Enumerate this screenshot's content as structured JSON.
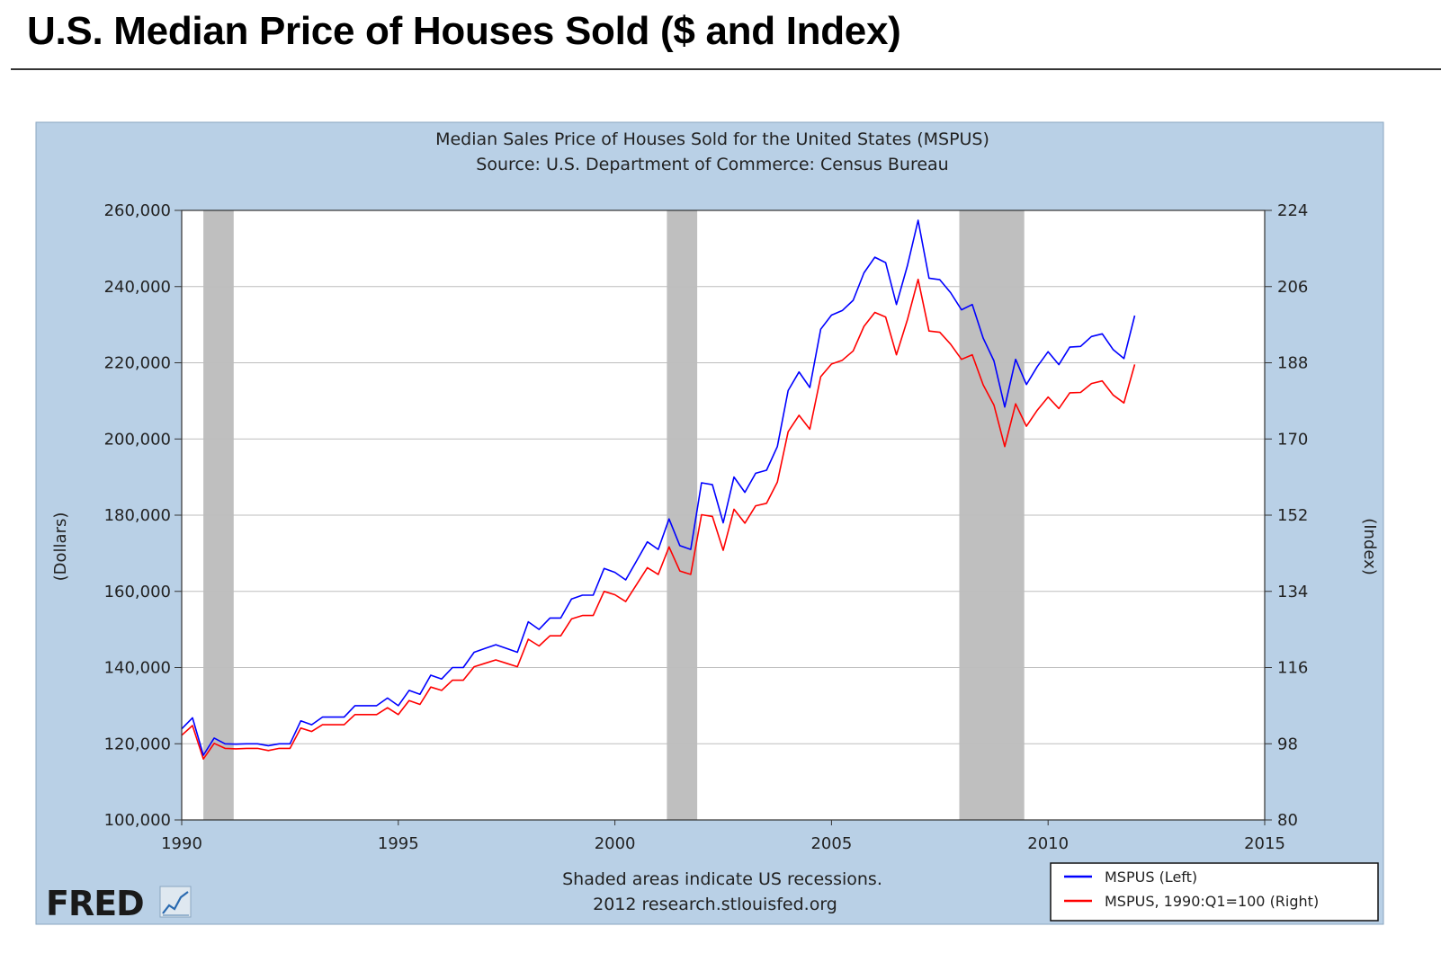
{
  "page": {
    "title": "U.S. Median Price of Houses Sold ($ and Index)"
  },
  "chart_data": {
    "type": "line",
    "title": "Median Sales Price of Houses Sold for the United States (MSPUS)",
    "subtitle": "Source: U.S. Department of Commerce: Census Bureau",
    "ylabel_left": "(Dollars)",
    "ylabel_right": "(Index)",
    "xlim": [
      1990,
      2015
    ],
    "ylim_left": [
      100000,
      260000
    ],
    "ylim_right": [
      80,
      224
    ],
    "x_ticks": [
      1990,
      1995,
      2000,
      2005,
      2010,
      2015
    ],
    "x_tick_labels": [
      "1990",
      "1995",
      "2000",
      "2005",
      "2010",
      "2015"
    ],
    "y_left_ticks": [
      100000,
      120000,
      140000,
      160000,
      180000,
      200000,
      220000,
      240000,
      260000
    ],
    "y_left_tick_labels": [
      "100,000",
      "120,000",
      "140,000",
      "160,000",
      "180,000",
      "200,000",
      "220,000",
      "240,000",
      "260,000"
    ],
    "y_right_ticks": [
      80,
      98,
      116,
      134,
      152,
      170,
      188,
      206,
      224
    ],
    "y_right_tick_labels": [
      "80",
      "98",
      "116",
      "134",
      "152",
      "170",
      "188",
      "206",
      "224"
    ],
    "grid": true,
    "legend_position": "bottom-right",
    "recessions": [
      {
        "start": 1990.5,
        "end": 1991.2
      },
      {
        "start": 2001.2,
        "end": 2001.9
      },
      {
        "start": 2007.95,
        "end": 2009.45
      }
    ],
    "footnote": "Shaded areas indicate US recessions.",
    "footnote2": "2012 research.stlouisfed.org",
    "logo_text": "FRED",
    "series": [
      {
        "name": "MSPUS (Left)",
        "axis": "left",
        "color": "#0000ff",
        "x": [
          1990.0,
          1990.25,
          1990.5,
          1990.75,
          1991.0,
          1991.25,
          1991.5,
          1991.75,
          1992.0,
          1992.25,
          1992.5,
          1992.75,
          1993.0,
          1993.25,
          1993.5,
          1993.75,
          1994.0,
          1994.25,
          1994.5,
          1994.75,
          1995.0,
          1995.25,
          1995.5,
          1995.75,
          1996.0,
          1996.25,
          1996.5,
          1996.75,
          1997.0,
          1997.25,
          1997.5,
          1997.75,
          1998.0,
          1998.25,
          1998.5,
          1998.75,
          1999.0,
          1999.25,
          1999.5,
          1999.75,
          2000.0,
          2000.25,
          2000.5,
          2000.75,
          2001.0,
          2001.25,
          2001.5,
          2001.75,
          2002.0,
          2002.25,
          2002.5,
          2002.75,
          2003.0,
          2003.25,
          2003.5,
          2003.75,
          2004.0,
          2004.25,
          2004.5,
          2004.75,
          2005.0,
          2005.25,
          2005.5,
          2005.75,
          2006.0,
          2006.25,
          2006.5,
          2006.75,
          2007.0,
          2007.25,
          2007.5,
          2007.75,
          2008.0,
          2008.25,
          2008.5,
          2008.75,
          2009.0,
          2009.25,
          2009.5,
          2009.75,
          2010.0,
          2010.25,
          2010.5,
          2010.75,
          2011.0,
          2011.25,
          2011.5,
          2011.75,
          2012.0
        ],
        "values": [
          123900,
          126800,
          117000,
          121500,
          120000,
          119900,
          120000,
          120000,
          119500,
          120000,
          120000,
          126000,
          125000,
          127000,
          127000,
          127000,
          130000,
          130000,
          130000,
          132000,
          130000,
          134000,
          133000,
          138000,
          137000,
          140000,
          140000,
          144000,
          145000,
          146000,
          145000,
          144000,
          152000,
          150000,
          153000,
          153000,
          158000,
          159000,
          159000,
          166000,
          165000,
          163000,
          168000,
          173000,
          171000,
          179000,
          172000,
          171000,
          188500,
          188000,
          178000,
          190000,
          186000,
          191000,
          191800,
          198000,
          212700,
          217600,
          213500,
          228800,
          232500,
          233700,
          236400,
          243600,
          247700,
          246300,
          235300,
          245400,
          257400,
          242200,
          241800,
          238400,
          233900,
          235300,
          226500,
          220500,
          208400,
          220900,
          214300,
          219000,
          222900,
          219500,
          224100,
          224300,
          226900,
          227600,
          223500,
          221100,
          232400
        ]
      },
      {
        "name": "MSPUS, 1990:Q1=100 (Right)",
        "axis": "right",
        "color": "#ff0000",
        "x": [
          1990.0,
          1990.25,
          1990.5,
          1990.75,
          1991.0,
          1991.25,
          1991.5,
          1991.75,
          1992.0,
          1992.25,
          1992.5,
          1992.75,
          1993.0,
          1993.25,
          1993.5,
          1993.75,
          1994.0,
          1994.25,
          1994.5,
          1994.75,
          1995.0,
          1995.25,
          1995.5,
          1995.75,
          1996.0,
          1996.25,
          1996.5,
          1996.75,
          1997.0,
          1997.25,
          1997.5,
          1997.75,
          1998.0,
          1998.25,
          1998.5,
          1998.75,
          1999.0,
          1999.25,
          1999.5,
          1999.75,
          2000.0,
          2000.25,
          2000.5,
          2000.75,
          2001.0,
          2001.25,
          2001.5,
          2001.75,
          2002.0,
          2002.25,
          2002.5,
          2002.75,
          2003.0,
          2003.25,
          2003.5,
          2003.75,
          2004.0,
          2004.25,
          2004.5,
          2004.75,
          2005.0,
          2005.25,
          2005.5,
          2005.75,
          2006.0,
          2006.25,
          2006.5,
          2006.75,
          2007.0,
          2007.25,
          2007.5,
          2007.75,
          2008.0,
          2008.25,
          2008.5,
          2008.75,
          2009.0,
          2009.25,
          2009.5,
          2009.75,
          2010.0,
          2010.25,
          2010.5,
          2010.75,
          2011.0,
          2011.25,
          2011.5,
          2011.75,
          2012.0
        ],
        "values": [
          100.0,
          102.3,
          94.4,
          98.1,
          96.9,
          96.8,
          96.9,
          96.9,
          96.4,
          96.9,
          96.9,
          101.7,
          100.9,
          102.5,
          102.5,
          102.5,
          104.9,
          104.9,
          104.9,
          106.5,
          104.9,
          108.2,
          107.3,
          111.4,
          110.6,
          113.0,
          113.0,
          116.2,
          117.0,
          117.8,
          117.0,
          116.2,
          122.7,
          121.1,
          123.5,
          123.5,
          127.5,
          128.3,
          128.3,
          134.0,
          133.2,
          131.6,
          135.6,
          139.6,
          138.0,
          144.5,
          138.8,
          138.0,
          152.1,
          151.7,
          143.7,
          153.4,
          150.1,
          154.2,
          154.8,
          159.8,
          171.7,
          175.6,
          172.3,
          184.7,
          187.7,
          188.6,
          190.8,
          196.6,
          199.9,
          198.8,
          189.9,
          198.1,
          207.7,
          195.5,
          195.2,
          192.4,
          188.8,
          189.9,
          182.8,
          178.0,
          168.2,
          178.3,
          173.0,
          176.8,
          179.9,
          177.2,
          180.9,
          181.0,
          183.1,
          183.7,
          180.4,
          178.5,
          187.6
        ]
      }
    ]
  },
  "colors": {
    "panel_bg": "#b9d0e6",
    "plot_bg": "#ffffff",
    "recession": "#bfbfbf",
    "grid": "#bdbdbd",
    "left_series": "#0000ff",
    "right_series": "#ff0000"
  }
}
